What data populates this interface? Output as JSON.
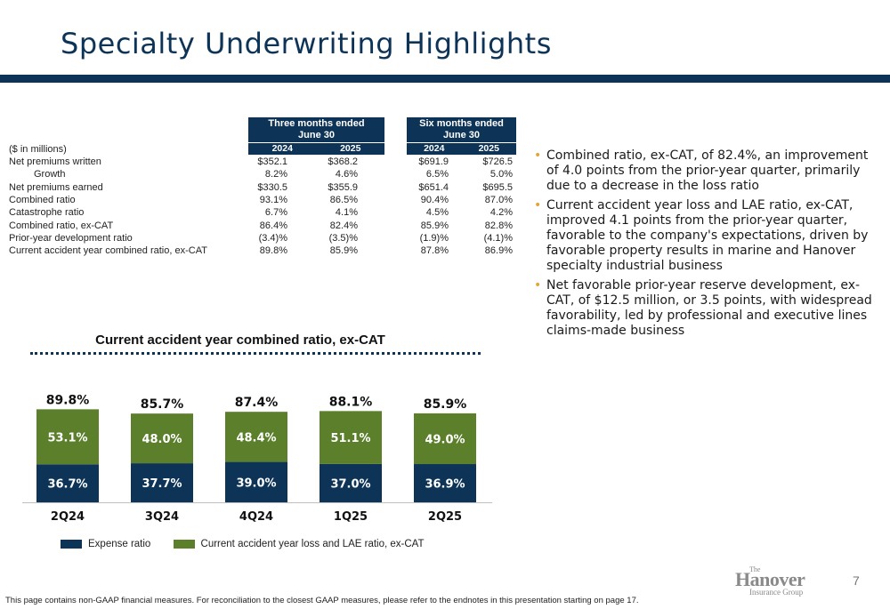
{
  "title": "Specialty Underwriting Highlights",
  "table": {
    "units_label": "($ in millions)",
    "groups": [
      {
        "line1": "Three months ended",
        "line2": "June 30",
        "years": [
          "2024",
          "2025"
        ]
      },
      {
        "line1": "Six months ended",
        "line2": "June 30",
        "years": [
          "2024",
          "2025"
        ]
      }
    ],
    "rows": [
      {
        "label": "Net premiums written",
        "indent": false,
        "values": [
          "$352.1",
          "$368.2",
          "$691.9",
          "$726.5"
        ]
      },
      {
        "label": "Growth",
        "indent": true,
        "values": [
          "8.2%",
          "4.6%",
          "6.5%",
          "5.0%"
        ]
      },
      {
        "label": "Net premiums earned",
        "indent": false,
        "values": [
          "$330.5",
          "$355.9",
          "$651.4",
          "$695.5"
        ]
      },
      {
        "label": "Combined ratio",
        "indent": false,
        "values": [
          "93.1%",
          "86.5%",
          "90.4%",
          "87.0%"
        ]
      },
      {
        "label": "Catastrophe ratio",
        "indent": false,
        "values": [
          "6.7%",
          "4.1%",
          "4.5%",
          "4.2%"
        ]
      },
      {
        "label": "Combined ratio, ex-CAT",
        "indent": false,
        "values": [
          "86.4%",
          "82.4%",
          "85.9%",
          "82.8%"
        ]
      },
      {
        "label": "Prior-year development ratio",
        "indent": false,
        "values": [
          "(3.4)%",
          "(3.5)%",
          "(1.9)%",
          "(4.1)%"
        ]
      },
      {
        "label": "Current accident year combined ratio, ex-CAT",
        "indent": false,
        "values": [
          "89.8%",
          "85.9%",
          "87.8%",
          "86.9%"
        ]
      }
    ]
  },
  "bullets": [
    "Combined ratio, ex-CAT, of 82.4%, an improvement of 4.0 points from the prior-year quarter, primarily due to a decrease in the loss ratio",
    "Current accident year loss and LAE ratio, ex-CAT, improved 4.1 points from the prior-year quarter, favorable to the company's expectations, driven by favorable property results in marine and Hanover specialty industrial business",
    "Net favorable prior-year reserve development, ex-CAT, of $12.5 million, or 3.5 points, with widespread favorability, led by professional and executive lines claims-made business"
  ],
  "chart_data": {
    "type": "bar",
    "stacked": true,
    "title": "Current accident year combined ratio, ex-CAT",
    "categories": [
      "2Q24",
      "3Q24",
      "4Q24",
      "1Q25",
      "2Q25"
    ],
    "series": [
      {
        "name": "Expense ratio",
        "values": [
          36.7,
          37.7,
          39.0,
          37.0,
          36.9
        ],
        "labels": [
          "36.7%",
          "37.7%",
          "39.0%",
          "37.0%",
          "36.9%"
        ],
        "color": "#0d3457"
      },
      {
        "name": "Current accident year loss and LAE ratio, ex-CAT",
        "values": [
          53.1,
          48.0,
          48.4,
          51.1,
          49.0
        ],
        "labels": [
          "53.1%",
          "48.0%",
          "48.4%",
          "51.1%",
          "49.0%"
        ],
        "color": "#5b7f2b"
      }
    ],
    "totals": [
      "89.8%",
      "85.7%",
      "87.4%",
      "88.1%",
      "85.9%"
    ],
    "ylim": [
      0,
      100
    ],
    "grid": false,
    "legend_position": "bottom"
  },
  "page_number": "7",
  "logo": {
    "the": "The",
    "name": "Hanover",
    "sub": "Insurance Group"
  },
  "footnote": "This page contains non-GAAP financial measures. For reconciliation to the closest GAAP measures, please refer to the endnotes in this presentation starting on page 17."
}
